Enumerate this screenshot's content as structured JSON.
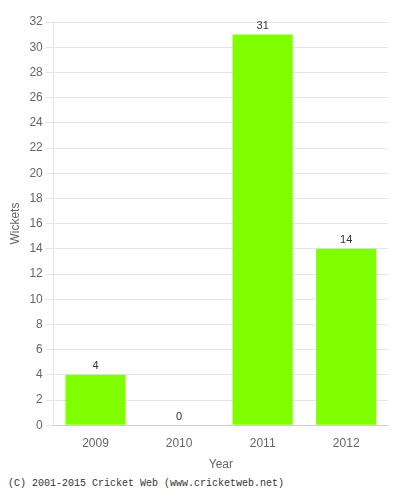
{
  "chart_data": {
    "type": "bar",
    "categories": [
      "2009",
      "2010",
      "2011",
      "2012"
    ],
    "values": [
      4,
      0,
      31,
      14
    ],
    "color": "#7FFF00",
    "xlabel": "Year",
    "ylabel": "Wickets",
    "ylim": [
      0,
      32
    ],
    "yticks": [
      0,
      2,
      4,
      6,
      8,
      10,
      12,
      14,
      16,
      18,
      20,
      22,
      24,
      26,
      28,
      30,
      32
    ],
    "grid": "y",
    "data_labels": true,
    "annotations": [
      "(C) 2001-2015 Cricket Web (www.cricketweb.net)"
    ]
  }
}
